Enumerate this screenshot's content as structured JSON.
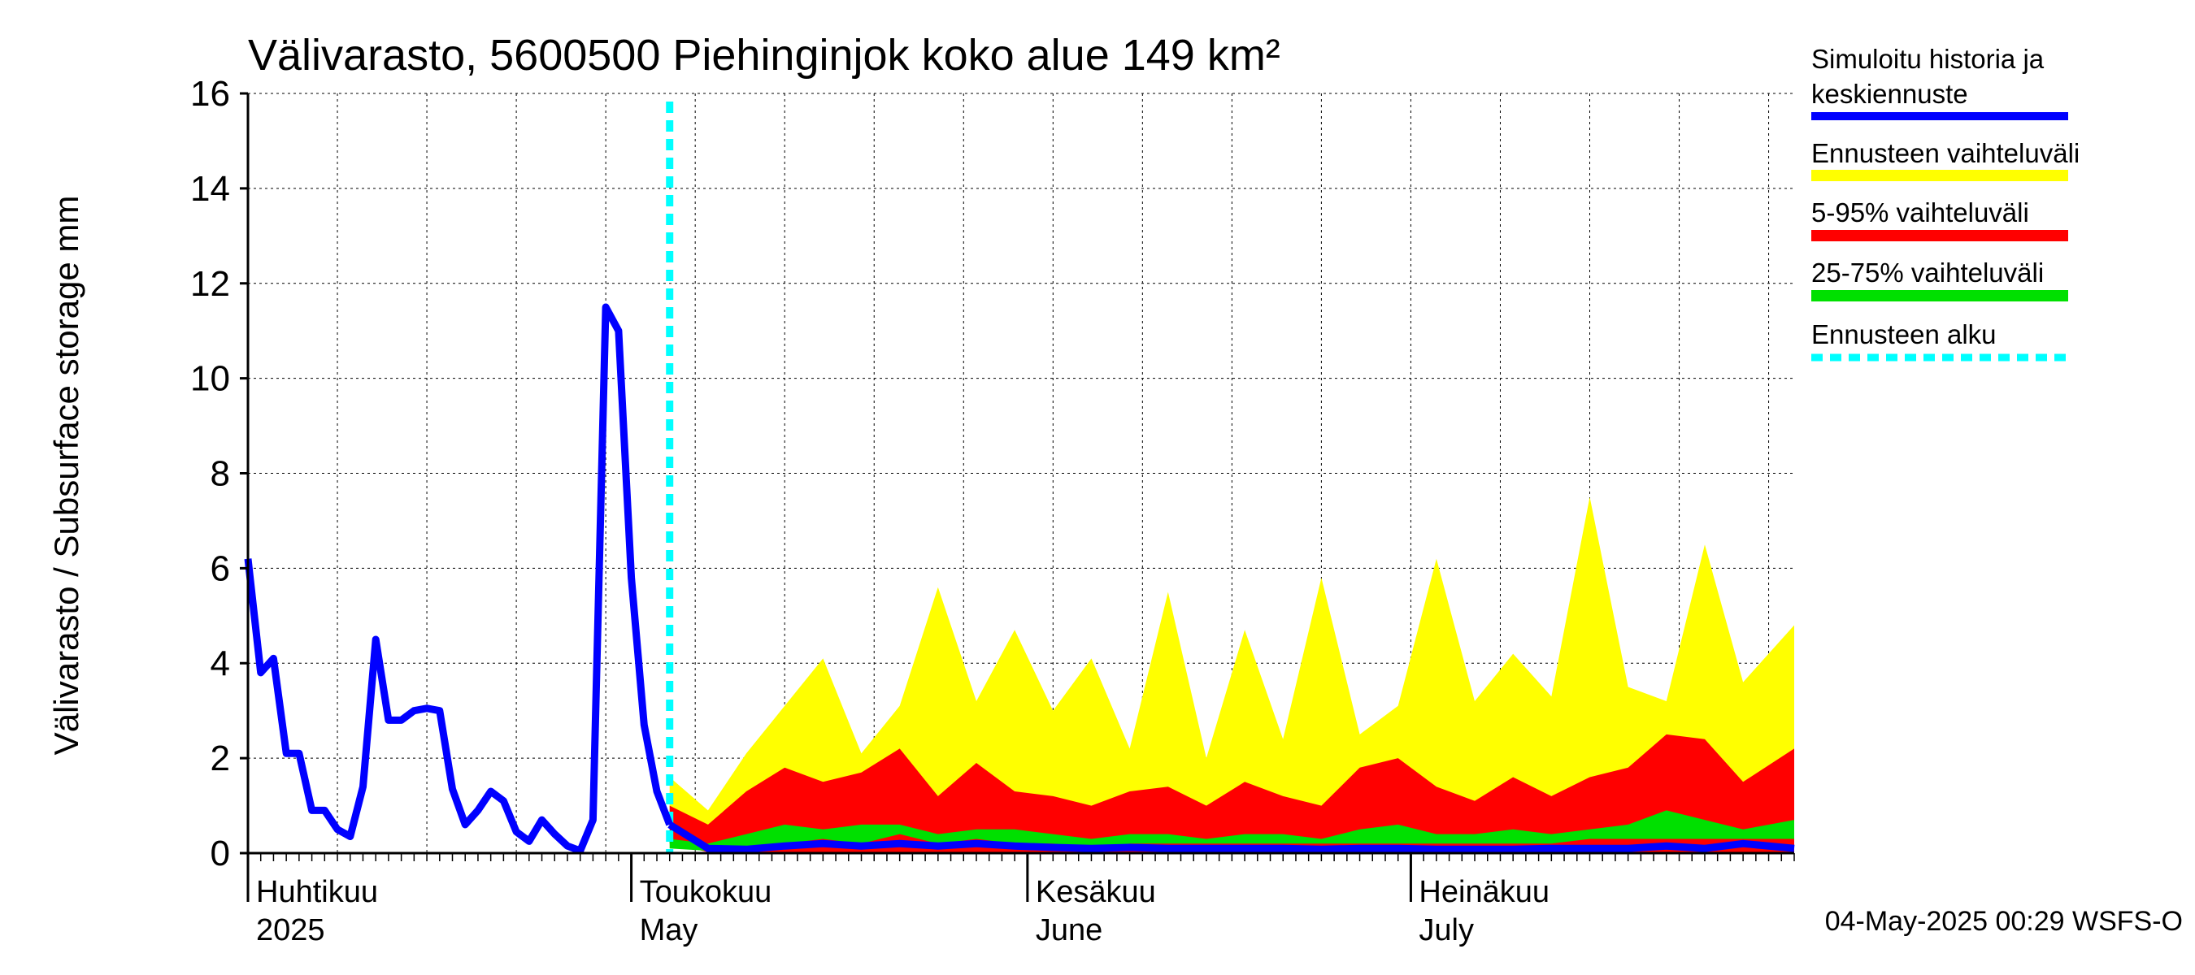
{
  "chart_data": {
    "type": "area",
    "title": "Välivarasto, 5600500 Piehinginjok koko alue 149 km²",
    "ylabel": "Välivarasto / Subsurface storage  mm",
    "ylim": [
      0,
      16
    ],
    "yticks": [
      0,
      2,
      4,
      6,
      8,
      10,
      12,
      14,
      16
    ],
    "grid": true,
    "legend_position": "right",
    "x_start": "2025-04-01",
    "x_end": "2025-07-31",
    "forecast_start": "2025-05-04",
    "month_labels": [
      {
        "date": "2025-04-01",
        "fi": "Huhtikuu",
        "en": "2025"
      },
      {
        "date": "2025-05-01",
        "fi": "Toukokuu",
        "en": "May"
      },
      {
        "date": "2025-06-01",
        "fi": "Kesäkuu",
        "en": "June"
      },
      {
        "date": "2025-07-01",
        "fi": "Heinäkuu",
        "en": "July"
      }
    ],
    "footer": "04-May-2025 00:29 WSFS-O",
    "legend": [
      {
        "label": "Simuloitu historia ja keskiennuste",
        "color": "#0000ff",
        "style": "line"
      },
      {
        "label": "Ennusteen vaihteluväli",
        "color": "#ffff00",
        "style": "band"
      },
      {
        "label": "5-95% vaihteluväli",
        "color": "#ff0000",
        "style": "band"
      },
      {
        "label": "25-75% vaihteluväli",
        "color": "#00e000",
        "style": "band"
      },
      {
        "label": "Ennusteen alku",
        "color": "#00ffff",
        "style": "dashed"
      }
    ],
    "history": {
      "dates": [
        "2025-04-01",
        "2025-04-02",
        "2025-04-03",
        "2025-04-04",
        "2025-04-05",
        "2025-04-06",
        "2025-04-07",
        "2025-04-08",
        "2025-04-09",
        "2025-04-10",
        "2025-04-11",
        "2025-04-12",
        "2025-04-13",
        "2025-04-14",
        "2025-04-15",
        "2025-04-16",
        "2025-04-17",
        "2025-04-18",
        "2025-04-19",
        "2025-04-20",
        "2025-04-21",
        "2025-04-22",
        "2025-04-23",
        "2025-04-24",
        "2025-04-25",
        "2025-04-26",
        "2025-04-27",
        "2025-04-28",
        "2025-04-29",
        "2025-04-30",
        "2025-05-01",
        "2025-05-02",
        "2025-05-03",
        "2025-05-04"
      ],
      "values": [
        6.2,
        3.8,
        4.1,
        2.1,
        2.1,
        0.9,
        0.9,
        0.5,
        0.35,
        1.4,
        4.5,
        2.8,
        2.8,
        3.0,
        3.05,
        3.0,
        1.35,
        0.6,
        0.9,
        1.3,
        1.1,
        0.45,
        0.25,
        0.7,
        0.4,
        0.15,
        0.05,
        0.7,
        11.5,
        11.0,
        5.8,
        2.7,
        1.3,
        0.6
      ]
    },
    "forecast": {
      "dates": [
        "2025-05-04",
        "2025-05-07",
        "2025-05-10",
        "2025-05-13",
        "2025-05-16",
        "2025-05-19",
        "2025-05-22",
        "2025-05-25",
        "2025-05-28",
        "2025-05-31",
        "2025-06-03",
        "2025-06-06",
        "2025-06-09",
        "2025-06-12",
        "2025-06-15",
        "2025-06-18",
        "2025-06-21",
        "2025-06-24",
        "2025-06-27",
        "2025-06-30",
        "2025-07-03",
        "2025-07-06",
        "2025-07-09",
        "2025-07-12",
        "2025-07-15",
        "2025-07-18",
        "2025-07-21",
        "2025-07-24",
        "2025-07-27",
        "2025-07-31"
      ],
      "min": [
        0.3,
        0.02,
        0.0,
        0.0,
        0.0,
        0.0,
        0.0,
        0.0,
        0.0,
        0.0,
        0.0,
        0.0,
        0.0,
        0.0,
        0.0,
        0.0,
        0.0,
        0.0,
        0.0,
        0.0,
        0.0,
        0.0,
        0.0,
        0.0,
        0.0,
        0.0,
        0.0,
        0.0,
        0.0,
        0.0
      ],
      "max": [
        1.6,
        0.9,
        2.1,
        3.1,
        4.1,
        2.1,
        3.1,
        5.6,
        3.2,
        4.7,
        3.0,
        4.1,
        2.2,
        5.5,
        2.0,
        4.7,
        2.4,
        5.8,
        2.5,
        3.1,
        6.2,
        3.2,
        4.2,
        3.3,
        7.5,
        3.5,
        3.2,
        6.5,
        3.6,
        4.8
      ],
      "p5": [
        0.2,
        0.02,
        0.01,
        0.0,
        0.0,
        0.0,
        0.0,
        0.0,
        0.0,
        0.0,
        0.0,
        0.0,
        0.0,
        0.0,
        0.0,
        0.0,
        0.0,
        0.0,
        0.0,
        0.0,
        0.0,
        0.0,
        0.0,
        0.0,
        0.0,
        0.0,
        0.0,
        0.0,
        0.0,
        0.0
      ],
      "p95": [
        1.0,
        0.6,
        1.3,
        1.8,
        1.5,
        1.7,
        2.2,
        1.2,
        1.9,
        1.3,
        1.2,
        1.0,
        1.3,
        1.4,
        1.0,
        1.5,
        1.2,
        1.0,
        1.8,
        2.0,
        1.4,
        1.1,
        1.6,
        1.2,
        1.6,
        1.8,
        2.5,
        2.4,
        1.5,
        2.2
      ],
      "p25": [
        0.1,
        0.05,
        0.1,
        0.2,
        0.3,
        0.2,
        0.4,
        0.2,
        0.3,
        0.2,
        0.2,
        0.1,
        0.2,
        0.2,
        0.2,
        0.2,
        0.2,
        0.2,
        0.2,
        0.2,
        0.2,
        0.2,
        0.2,
        0.2,
        0.3,
        0.3,
        0.3,
        0.3,
        0.3,
        0.3
      ],
      "p75": [
        0.3,
        0.2,
        0.4,
        0.6,
        0.5,
        0.6,
        0.6,
        0.4,
        0.5,
        0.5,
        0.4,
        0.3,
        0.4,
        0.4,
        0.3,
        0.4,
        0.4,
        0.3,
        0.5,
        0.6,
        0.4,
        0.4,
        0.5,
        0.4,
        0.5,
        0.6,
        0.9,
        0.7,
        0.5,
        0.7
      ],
      "median": [
        0.6,
        0.1,
        0.08,
        0.15,
        0.2,
        0.15,
        0.2,
        0.15,
        0.2,
        0.15,
        0.12,
        0.1,
        0.12,
        0.1,
        0.1,
        0.1,
        0.1,
        0.08,
        0.1,
        0.1,
        0.08,
        0.08,
        0.08,
        0.1,
        0.1,
        0.1,
        0.15,
        0.1,
        0.2,
        0.1
      ]
    }
  }
}
